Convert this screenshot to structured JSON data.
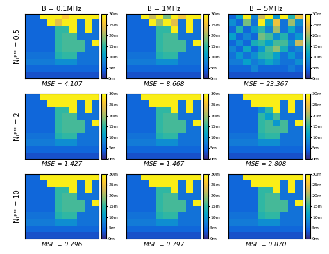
{
  "chart_data": {
    "type": "heatmap",
    "columns": [
      "B = 0.1MHz",
      "B = 1MHz",
      "B = 5MHz"
    ],
    "rows": [
      "Nₜᵖʳᵉ = 0.5",
      "Nₜᵖʳᵉ = 2",
      "Nₜᵖʳᵉ = 10"
    ],
    "colorbar_range": [
      0,
      30
    ],
    "colorbar_ticks": [
      {
        "value": 0,
        "label": "0m"
      },
      {
        "value": 5,
        "label": "5m"
      },
      {
        "value": 10,
        "label": "10m"
      },
      {
        "value": 15,
        "label": "15m"
      },
      {
        "value": 20,
        "label": "20m"
      },
      {
        "value": 25,
        "label": "25m"
      },
      {
        "value": 30,
        "label": "30m"
      }
    ],
    "panels": [
      [
        {
          "mse_text": "MSE = 4.107",
          "cells": [
            [
              5,
              5,
              29,
              29,
              29,
              26,
              29,
              29,
              29,
              29
            ],
            [
              5,
              5,
              5,
              29,
              24,
              29,
              29,
              6,
              29,
              6
            ],
            [
              5,
              5,
              5,
              5,
              15,
              15,
              29,
              6,
              29,
              6
            ],
            [
              5,
              5,
              5,
              5,
              15,
              16,
              16,
              6,
              6,
              6
            ],
            [
              5,
              5,
              5,
              5,
              15,
              16,
              16,
              16,
              6,
              29
            ],
            [
              5,
              5,
              5,
              5,
              15,
              16,
              16,
              16,
              6,
              6
            ],
            [
              6,
              6,
              6,
              6,
              14,
              15,
              15,
              6,
              6,
              6
            ],
            [
              7,
              7,
              7,
              7,
              9,
              9,
              9,
              6,
              6,
              6
            ],
            [
              5,
              5,
              5,
              5,
              5,
              5,
              5,
              5,
              5,
              5
            ],
            [
              3,
              3,
              3,
              3,
              3,
              3,
              3,
              3,
              3,
              3
            ]
          ]
        },
        {
          "mse_text": "MSE = 8.668",
          "cells": [
            [
              5,
              5,
              29,
              22,
              29,
              18,
              29,
              25,
              29,
              29
            ],
            [
              5,
              5,
              5,
              29,
              20,
              29,
              24,
              6,
              29,
              6
            ],
            [
              5,
              5,
              5,
              5,
              15,
              15,
              29,
              6,
              29,
              6
            ],
            [
              5,
              5,
              5,
              5,
              15,
              16,
              16,
              6,
              6,
              6
            ],
            [
              5,
              5,
              5,
              5,
              15,
              16,
              16,
              16,
              6,
              29
            ],
            [
              5,
              5,
              5,
              5,
              15,
              16,
              16,
              16,
              6,
              6
            ],
            [
              6,
              6,
              6,
              6,
              14,
              15,
              15,
              6,
              6,
              6
            ],
            [
              7,
              7,
              7,
              7,
              9,
              9,
              9,
              6,
              6,
              6
            ],
            [
              5,
              5,
              5,
              5,
              5,
              5,
              5,
              5,
              5,
              5
            ],
            [
              3,
              3,
              3,
              3,
              3,
              3,
              3,
              3,
              3,
              3
            ]
          ]
        },
        {
          "mse_text": "MSE = 23.367",
          "cells": [
            [
              5,
              12,
              29,
              8,
              22,
              29,
              10,
              29,
              14,
              25
            ],
            [
              9,
              5,
              18,
              6,
              29,
              12,
              25,
              6,
              20,
              9
            ],
            [
              5,
              14,
              5,
              10,
              15,
              8,
              20,
              6,
              12,
              6
            ],
            [
              11,
              5,
              8,
              5,
              18,
              16,
              9,
              14,
              6,
              10
            ],
            [
              5,
              9,
              5,
              13,
              15,
              11,
              16,
              16,
              9,
              22
            ],
            [
              8,
              5,
              12,
              5,
              10,
              16,
              19,
              13,
              6,
              8
            ],
            [
              6,
              10,
              6,
              9,
              14,
              15,
              11,
              6,
              10,
              6
            ],
            [
              7,
              7,
              11,
              7,
              9,
              12,
              9,
              6,
              6,
              9
            ],
            [
              5,
              5,
              5,
              8,
              5,
              5,
              5,
              5,
              7,
              5
            ],
            [
              3,
              3,
              3,
              3,
              3,
              3,
              3,
              3,
              3,
              3
            ]
          ]
        }
      ],
      [
        {
          "mse_text": "MSE = 1.427",
          "cells": [
            [
              5,
              5,
              29,
              29,
              29,
              29,
              29,
              29,
              29,
              29
            ],
            [
              5,
              5,
              5,
              29,
              29,
              29,
              29,
              6,
              29,
              6
            ],
            [
              5,
              5,
              5,
              5,
              15,
              15,
              29,
              6,
              29,
              6
            ],
            [
              5,
              5,
              5,
              5,
              15,
              16,
              16,
              6,
              6,
              6
            ],
            [
              5,
              5,
              5,
              5,
              15,
              16,
              16,
              16,
              6,
              29
            ],
            [
              5,
              5,
              5,
              5,
              15,
              16,
              16,
              16,
              6,
              6
            ],
            [
              6,
              6,
              6,
              6,
              14,
              15,
              15,
              6,
              6,
              6
            ],
            [
              7,
              7,
              7,
              7,
              9,
              9,
              9,
              6,
              6,
              6
            ],
            [
              5,
              5,
              5,
              5,
              5,
              5,
              5,
              5,
              5,
              5
            ],
            [
              3,
              3,
              3,
              3,
              3,
              3,
              3,
              3,
              3,
              3
            ]
          ]
        },
        {
          "mse_text": "MSE = 1.467",
          "cells": [
            [
              5,
              5,
              29,
              29,
              29,
              29,
              29,
              29,
              29,
              29
            ],
            [
              5,
              5,
              5,
              29,
              29,
              29,
              29,
              6,
              29,
              6
            ],
            [
              5,
              5,
              5,
              5,
              15,
              15,
              29,
              6,
              29,
              6
            ],
            [
              5,
              5,
              5,
              5,
              15,
              16,
              16,
              6,
              6,
              6
            ],
            [
              5,
              5,
              5,
              5,
              15,
              16,
              16,
              16,
              6,
              29
            ],
            [
              5,
              5,
              5,
              5,
              15,
              16,
              16,
              16,
              6,
              6
            ],
            [
              6,
              6,
              6,
              6,
              14,
              15,
              15,
              6,
              6,
              6
            ],
            [
              7,
              7,
              7,
              7,
              9,
              9,
              9,
              6,
              6,
              6
            ],
            [
              5,
              5,
              5,
              5,
              5,
              5,
              5,
              5,
              5,
              5
            ],
            [
              3,
              3,
              3,
              3,
              3,
              3,
              3,
              3,
              3,
              3
            ]
          ]
        },
        {
          "mse_text": "MSE = 2.808",
          "cells": [
            [
              5,
              5,
              29,
              29,
              29,
              29,
              29,
              29,
              29,
              29
            ],
            [
              5,
              5,
              5,
              29,
              29,
              29,
              29,
              6,
              29,
              6
            ],
            [
              5,
              5,
              5,
              5,
              9,
              15,
              29,
              6,
              29,
              6
            ],
            [
              5,
              5,
              5,
              5,
              15,
              11,
              16,
              6,
              6,
              6
            ],
            [
              5,
              5,
              5,
              5,
              15,
              16,
              10,
              16,
              6,
              29
            ],
            [
              5,
              5,
              5,
              5,
              15,
              16,
              16,
              16,
              6,
              6
            ],
            [
              6,
              6,
              6,
              6,
              14,
              15,
              15,
              6,
              6,
              6
            ],
            [
              7,
              7,
              7,
              7,
              9,
              9,
              9,
              6,
              6,
              6
            ],
            [
              5,
              5,
              5,
              5,
              5,
              5,
              5,
              5,
              5,
              5
            ],
            [
              3,
              3,
              3,
              3,
              3,
              3,
              3,
              3,
              3,
              3
            ]
          ]
        }
      ],
      [
        {
          "mse_text": "MSE = 0.796",
          "cells": [
            [
              5,
              5,
              29,
              29,
              29,
              29,
              29,
              29,
              29,
              29
            ],
            [
              5,
              5,
              5,
              29,
              29,
              29,
              29,
              6,
              29,
              6
            ],
            [
              5,
              5,
              5,
              5,
              15,
              15,
              29,
              6,
              29,
              6
            ],
            [
              5,
              5,
              5,
              5,
              15,
              16,
              16,
              6,
              6,
              6
            ],
            [
              5,
              5,
              5,
              5,
              15,
              16,
              16,
              16,
              6,
              29
            ],
            [
              5,
              5,
              5,
              5,
              15,
              16,
              16,
              16,
              6,
              6
            ],
            [
              6,
              6,
              6,
              6,
              14,
              15,
              15,
              6,
              6,
              6
            ],
            [
              7,
              7,
              7,
              7,
              9,
              9,
              9,
              6,
              6,
              6
            ],
            [
              5,
              5,
              5,
              5,
              5,
              5,
              5,
              5,
              5,
              5
            ],
            [
              3,
              3,
              3,
              3,
              3,
              3,
              3,
              3,
              3,
              3
            ]
          ]
        },
        {
          "mse_text": "MSE = 0.797",
          "cells": [
            [
              5,
              5,
              29,
              29,
              29,
              29,
              29,
              29,
              29,
              29
            ],
            [
              5,
              5,
              5,
              29,
              29,
              29,
              29,
              6,
              29,
              6
            ],
            [
              5,
              5,
              5,
              5,
              15,
              15,
              29,
              6,
              29,
              6
            ],
            [
              5,
              5,
              5,
              5,
              15,
              16,
              16,
              6,
              6,
              6
            ],
            [
              5,
              5,
              5,
              5,
              15,
              16,
              16,
              16,
              6,
              29
            ],
            [
              5,
              5,
              5,
              5,
              15,
              16,
              16,
              16,
              6,
              6
            ],
            [
              6,
              6,
              6,
              6,
              14,
              15,
              15,
              6,
              6,
              6
            ],
            [
              7,
              7,
              7,
              7,
              9,
              9,
              9,
              6,
              6,
              6
            ],
            [
              5,
              5,
              5,
              5,
              5,
              5,
              5,
              5,
              5,
              5
            ],
            [
              3,
              3,
              3,
              3,
              3,
              3,
              3,
              3,
              3,
              3
            ]
          ]
        },
        {
          "mse_text": "MSE = 0.870",
          "cells": [
            [
              5,
              5,
              29,
              29,
              29,
              29,
              29,
              29,
              29,
              29
            ],
            [
              5,
              5,
              5,
              29,
              29,
              29,
              29,
              6,
              29,
              6
            ],
            [
              5,
              5,
              5,
              5,
              15,
              15,
              29,
              6,
              29,
              6
            ],
            [
              5,
              5,
              5,
              5,
              15,
              16,
              16,
              6,
              6,
              6
            ],
            [
              5,
              5,
              5,
              5,
              15,
              16,
              16,
              16,
              6,
              29
            ],
            [
              5,
              5,
              5,
              5,
              15,
              16,
              16,
              16,
              6,
              6
            ],
            [
              6,
              6,
              6,
              6,
              14,
              15,
              15,
              6,
              6,
              6
            ],
            [
              7,
              7,
              7,
              7,
              9,
              9,
              9,
              6,
              6,
              6
            ],
            [
              5,
              5,
              5,
              5,
              5,
              5,
              5,
              5,
              5,
              5
            ],
            [
              3,
              3,
              3,
              3,
              3,
              3,
              3,
              3,
              3,
              3
            ]
          ]
        }
      ]
    ]
  }
}
